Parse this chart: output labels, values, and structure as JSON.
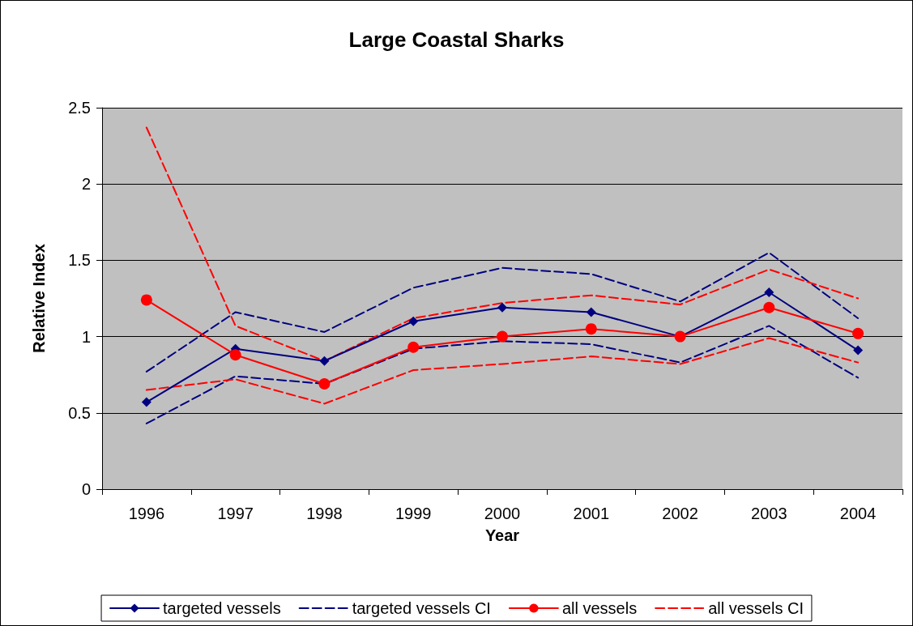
{
  "chart_data": {
    "type": "line",
    "title": "Large Coastal Sharks",
    "xlabel": "Year",
    "ylabel": "Relative Index",
    "categories": [
      "1996",
      "1997",
      "1998",
      "1999",
      "2000",
      "2001",
      "2002",
      "2003",
      "2004"
    ],
    "series": [
      {
        "name": "targeted vessels",
        "color": "#000080",
        "marker": "diamond",
        "line_style": "solid",
        "values": [
          0.57,
          0.92,
          0.84,
          1.1,
          1.19,
          1.16,
          1.0,
          1.29,
          0.91
        ]
      },
      {
        "name": "targeted vessels CI",
        "color": "#000080",
        "marker": "none",
        "line_style": "dashed",
        "values": [
          0.77,
          1.16,
          1.03,
          1.32,
          1.45,
          1.41,
          1.23,
          1.55,
          1.12
        ]
      },
      {
        "color": "#000080",
        "marker": "none",
        "line_style": "dashed",
        "values": [
          0.43,
          0.74,
          0.69,
          0.92,
          0.97,
          0.95,
          0.83,
          1.07,
          0.73
        ]
      },
      {
        "name": "all vessels",
        "color": "#ff0000",
        "marker": "circle",
        "line_style": "solid",
        "values": [
          1.24,
          0.88,
          0.69,
          0.93,
          1.0,
          1.05,
          1.0,
          1.19,
          1.02
        ]
      },
      {
        "name": "all vessels CI",
        "color": "#ff0000",
        "marker": "none",
        "line_style": "dashed",
        "values": [
          2.37,
          1.07,
          0.84,
          1.12,
          1.22,
          1.27,
          1.21,
          1.44,
          1.25
        ]
      },
      {
        "color": "#ff0000",
        "marker": "none",
        "line_style": "dashed",
        "values": [
          0.65,
          0.72,
          0.56,
          0.78,
          0.82,
          0.87,
          0.82,
          0.99,
          0.83
        ]
      }
    ],
    "ylim": [
      0,
      2.5
    ],
    "yticks": [
      0,
      0.5,
      1,
      1.5,
      2,
      2.5
    ],
    "grid": "y",
    "legend": "bottom"
  }
}
